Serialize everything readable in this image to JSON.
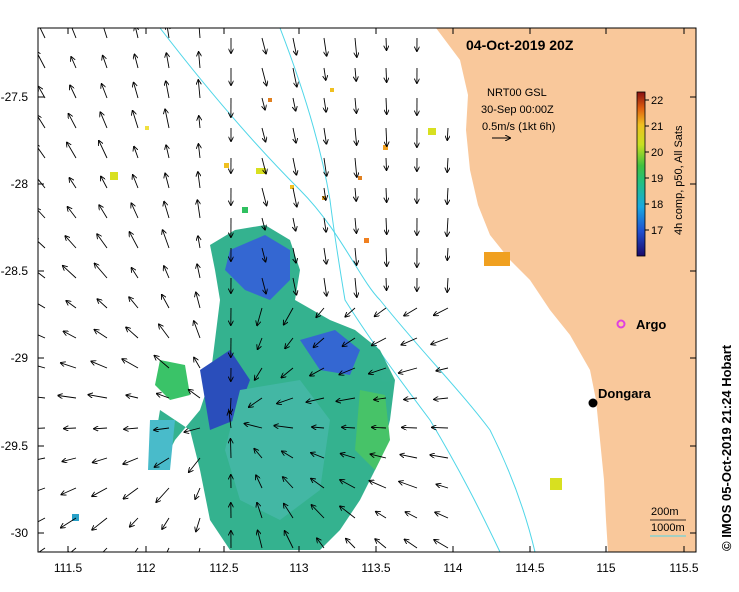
{
  "title": "04-Oct-2019 20Z",
  "vector_legend": {
    "line1": "NRT00 GSL",
    "line2": "30-Sep 00:00Z",
    "line3": "0.5m/s (1kt 6h)"
  },
  "colorbar": {
    "label": "4h comp, p50, All Sats",
    "ticks": [
      "22",
      "21",
      "20",
      "19",
      "18",
      "17"
    ]
  },
  "places": {
    "argo": "Argo",
    "dongara": "Dongara"
  },
  "contour_legend": {
    "c200": "200m",
    "c1000": "1000m"
  },
  "credit": "© IMOS 05-Oct-2019 21:24 Hobart",
  "axes": {
    "x_ticks": [
      "111.5",
      "112",
      "112.5",
      "113",
      "113.5",
      "114",
      "114.5",
      "115",
      "115.5"
    ],
    "y_ticks": [
      "-27.5",
      "-28",
      "-28.5",
      "-29",
      "-29.5",
      "-30"
    ]
  },
  "colors": {
    "land": "#f9c89b",
    "isobath_200": "#4fd6e8",
    "isobath_1000": "#4fd6e8",
    "argo_marker": "#e040e0"
  }
}
